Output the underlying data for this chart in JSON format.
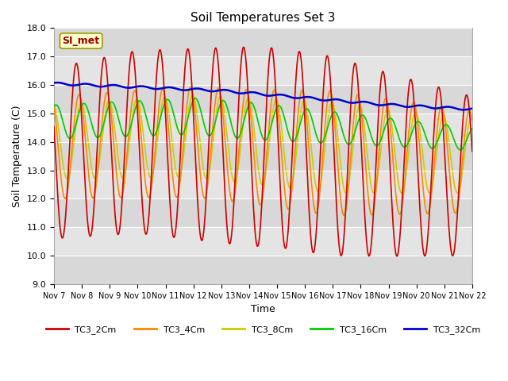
{
  "title": "Soil Temperatures Set 3",
  "xlabel": "Time",
  "ylabel": "Soil Temperature (C)",
  "ylim": [
    9.0,
    18.0
  ],
  "yticks": [
    9.0,
    10.0,
    11.0,
    12.0,
    13.0,
    14.0,
    15.0,
    16.0,
    17.0,
    18.0
  ],
  "series_colors": {
    "TC3_2Cm": "#cc0000",
    "TC3_4Cm": "#ff8800",
    "TC3_8Cm": "#cccc00",
    "TC3_16Cm": "#00cc00",
    "TC3_32Cm": "#0000cc"
  },
  "xtick_labels": [
    "Nov 7",
    "Nov 8",
    "Nov 9",
    "Nov 10",
    "Nov 11",
    "Nov 12",
    "Nov 13",
    "Nov 14",
    "Nov 15",
    "Nov 16",
    "Nov 17",
    "Nov 18",
    "Nov 19",
    "Nov 20",
    "Nov 21",
    "Nov 22"
  ],
  "annotation_text": "SI_met",
  "annotation_color": "#990000",
  "annotation_bg": "#ffffcc",
  "annotation_border": "#999900",
  "band_colors": [
    "#d8d8d8",
    "#e4e4e4"
  ]
}
